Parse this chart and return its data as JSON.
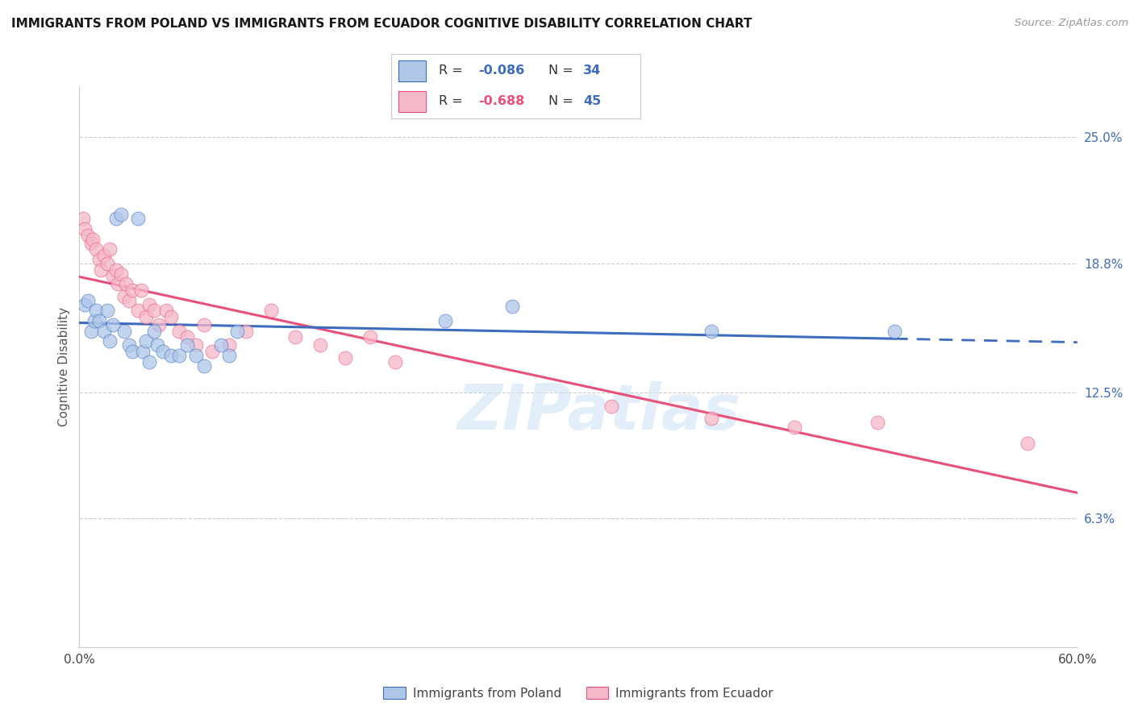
{
  "title": "IMMIGRANTS FROM POLAND VS IMMIGRANTS FROM ECUADOR COGNITIVE DISABILITY CORRELATION CHART",
  "source": "Source: ZipAtlas.com",
  "ylabel": "Cognitive Disability",
  "ytick_labels": [
    "25.0%",
    "18.8%",
    "12.5%",
    "6.3%"
  ],
  "ytick_values": [
    0.25,
    0.188,
    0.125,
    0.063
  ],
  "xlim": [
    0.0,
    0.6
  ],
  "ylim": [
    0.0,
    0.275
  ],
  "legend_poland_R": "-0.086",
  "legend_poland_N": "34",
  "legend_ecuador_R": "-0.688",
  "legend_ecuador_N": "45",
  "color_poland": "#aec6e8",
  "color_ecuador": "#f5b8c8",
  "color_poland_line": "#3d6bbf",
  "color_ecuador_line": "#e8507a",
  "color_text_blue": "#3d6bbf",
  "color_text_red": "#e8507a",
  "watermark": "ZIPatlas",
  "poland_x": [
    0.003,
    0.005,
    0.007,
    0.009,
    0.01,
    0.012,
    0.015,
    0.017,
    0.018,
    0.02,
    0.022,
    0.025,
    0.027,
    0.03,
    0.032,
    0.035,
    0.038,
    0.04,
    0.042,
    0.045,
    0.047,
    0.05,
    0.055,
    0.06,
    0.065,
    0.07,
    0.075,
    0.085,
    0.09,
    0.095,
    0.22,
    0.26,
    0.38,
    0.49
  ],
  "poland_y": [
    0.168,
    0.17,
    0.155,
    0.16,
    0.165,
    0.16,
    0.155,
    0.165,
    0.15,
    0.158,
    0.21,
    0.212,
    0.155,
    0.148,
    0.145,
    0.21,
    0.145,
    0.15,
    0.14,
    0.155,
    0.148,
    0.145,
    0.143,
    0.143,
    0.148,
    0.143,
    0.138,
    0.148,
    0.143,
    0.155,
    0.16,
    0.167,
    0.155,
    0.155
  ],
  "ecuador_x": [
    0.002,
    0.003,
    0.005,
    0.007,
    0.008,
    0.01,
    0.012,
    0.013,
    0.015,
    0.017,
    0.018,
    0.02,
    0.022,
    0.023,
    0.025,
    0.027,
    0.028,
    0.03,
    0.032,
    0.035,
    0.037,
    0.04,
    0.042,
    0.045,
    0.048,
    0.052,
    0.055,
    0.06,
    0.065,
    0.07,
    0.075,
    0.08,
    0.09,
    0.1,
    0.115,
    0.13,
    0.145,
    0.16,
    0.175,
    0.19,
    0.32,
    0.38,
    0.43,
    0.48,
    0.57
  ],
  "ecuador_y": [
    0.21,
    0.205,
    0.202,
    0.198,
    0.2,
    0.195,
    0.19,
    0.185,
    0.192,
    0.188,
    0.195,
    0.182,
    0.185,
    0.178,
    0.183,
    0.172,
    0.178,
    0.17,
    0.175,
    0.165,
    0.175,
    0.162,
    0.168,
    0.165,
    0.158,
    0.165,
    0.162,
    0.155,
    0.152,
    0.148,
    0.158,
    0.145,
    0.148,
    0.155,
    0.165,
    0.152,
    0.148,
    0.142,
    0.152,
    0.14,
    0.118,
    0.112,
    0.108,
    0.11,
    0.1
  ],
  "poland_line_solid_end": 0.49,
  "poland_line_dash_start": 0.49
}
